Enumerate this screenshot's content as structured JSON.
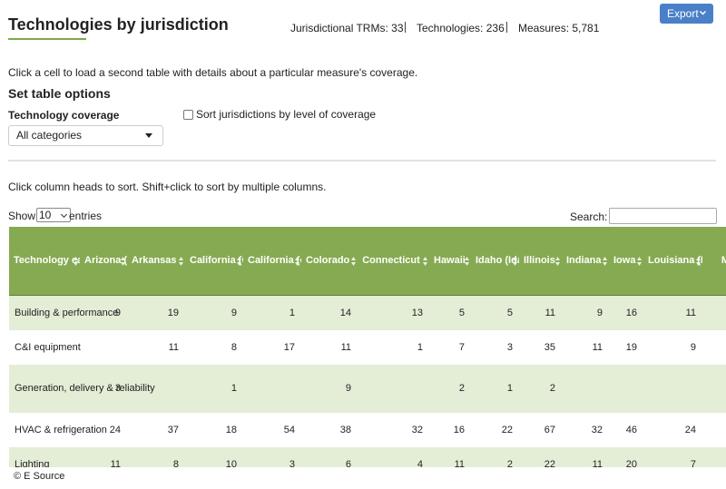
{
  "header": {
    "title": "Technologies by jurisdiction",
    "stats": [
      "Jurisdictional TRMs: 33",
      "Technologies: 236",
      "Measures: 5,781"
    ],
    "export_button": "Export"
  },
  "intro": "Click a cell to load a second table with details about a particular measure's coverage.",
  "options": {
    "heading": "Set table options",
    "coverage_label": "Technology coverage",
    "coverage_select": "All categories",
    "sort_checkbox": "Sort jurisdictions by level of coverage"
  },
  "sort_hint": "Click column heads to sort. Shift+click to sort by multiple columns.",
  "length": {
    "show": "Show",
    "value": "10",
    "entries": "entries"
  },
  "search_label": "Search:",
  "table": {
    "headers": [
      "Technology category",
      "Arizona (Arizona Public Service)",
      "Arkansas",
      "California (CMUA)",
      "California (eTRM)",
      "Colorado",
      "Connecticut",
      "Hawaii",
      "Idaho (Idaho Power)",
      "Illinois",
      "Indiana",
      "Iowa",
      "Louisiana (Entergy New Orleans)",
      "M"
    ],
    "rows": [
      [
        "Building & performance",
        9,
        19,
        9,
        1,
        14,
        13,
        5,
        5,
        11,
        9,
        16,
        11
      ],
      [
        "C&I equipment",
        null,
        11,
        8,
        17,
        11,
        1,
        7,
        3,
        35,
        11,
        19,
        9
      ],
      [
        "Generation, delivery & reliability",
        3,
        null,
        1,
        null,
        9,
        null,
        2,
        1,
        2,
        null,
        null,
        null
      ],
      [
        "HVAC & refrigeration",
        24,
        37,
        18,
        54,
        38,
        32,
        16,
        22,
        67,
        32,
        46,
        24
      ],
      [
        "Lighting",
        11,
        8,
        10,
        3,
        6,
        4,
        11,
        2,
        22,
        11,
        20,
        7
      ]
    ]
  },
  "footer": "© E Source"
}
